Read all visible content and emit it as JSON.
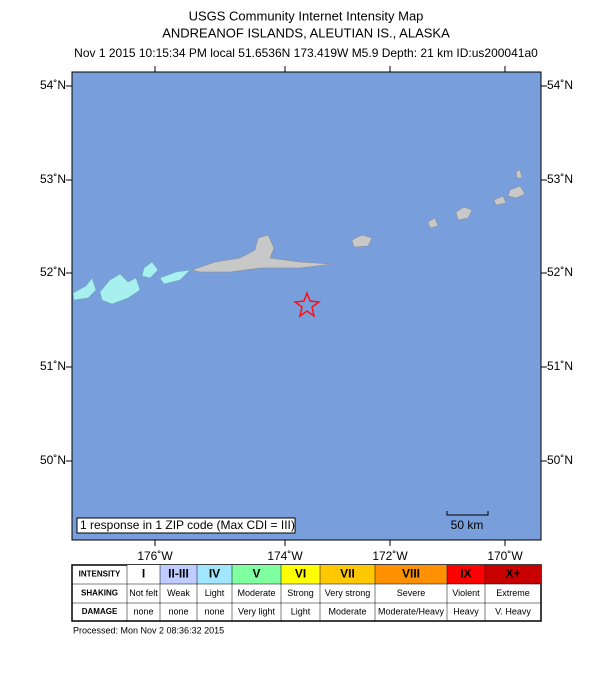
{
  "header": {
    "title": "USGS Community Internet Intensity Map",
    "subtitle": "ANDREANOF ISLANDS, ALEUTIAN IS., ALASKA",
    "details": "Nov 1 2015 10:15:34 PM local 51.6536N 173.419W M5.9 Depth: 21 km ID:us200041a0"
  },
  "map": {
    "lat_labels": [
      "54˚N",
      "53˚N",
      "52˚N",
      "51˚N",
      "50˚N"
    ],
    "lon_labels": [
      "176˚W",
      "174˚W",
      "172˚W",
      "170˚W"
    ],
    "note": "1 response in 1 ZIP code (Max CDI = III)",
    "scale_label": "50 km"
  },
  "legend": {
    "row_labels": [
      "INTENSITY",
      "SHAKING",
      "DAMAGE"
    ],
    "columns": [
      {
        "intensity": "I",
        "shaking": "Not felt",
        "damage": "none",
        "color": "#ffffff"
      },
      {
        "intensity": "II-III",
        "shaking": "Weak",
        "damage": "none",
        "color": "#bfccff"
      },
      {
        "intensity": "IV",
        "shaking": "Light",
        "damage": "none",
        "color": "#a0e6ff"
      },
      {
        "intensity": "V",
        "shaking": "Moderate",
        "damage": "Very light",
        "color": "#80ffa0"
      },
      {
        "intensity": "VI",
        "shaking": "Strong",
        "damage": "Light",
        "color": "#ffff00"
      },
      {
        "intensity": "VII",
        "shaking": "Very strong",
        "damage": "Moderate",
        "color": "#ffc800"
      },
      {
        "intensity": "VIII",
        "shaking": "Severe",
        "damage": "Moderate/Heavy",
        "color": "#ff9100"
      },
      {
        "intensity": "IX",
        "shaking": "Violent",
        "damage": "Heavy",
        "color": "#ff0000"
      },
      {
        "intensity": "X+",
        "shaking": "Extreme",
        "damage": "V. Heavy",
        "color": "#c80000"
      }
    ]
  },
  "footer": "Processed: Mon Nov  2 08:36:32 2015"
}
